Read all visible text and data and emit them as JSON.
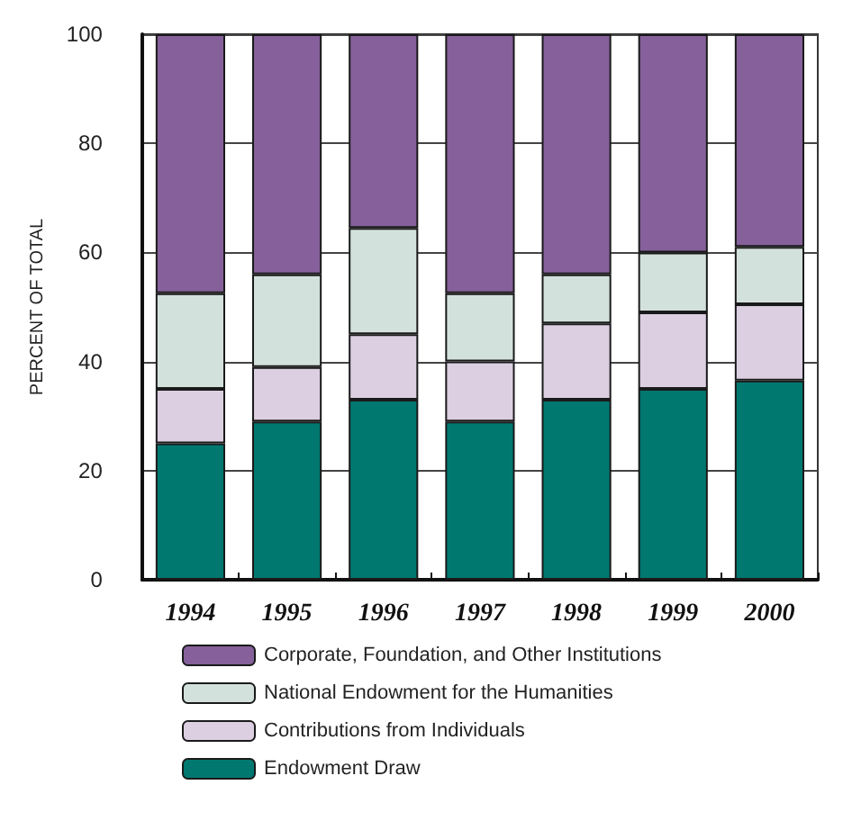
{
  "chart_data": {
    "type": "bar",
    "stacked": true,
    "ylabel": "PERCENT OF TOTAL",
    "categories": [
      "1994",
      "1995",
      "1996",
      "1997",
      "1998",
      "1999",
      "2000"
    ],
    "series": [
      {
        "name": "Endowment Draw",
        "color": "#007870",
        "values": [
          25,
          29,
          33,
          29,
          33,
          35,
          36.5
        ]
      },
      {
        "name": "Contributions from Individuals",
        "color": "#dccfe2",
        "values": [
          10,
          10,
          12,
          11,
          14,
          14,
          14
        ]
      },
      {
        "name": "National Endowment for the Humanities",
        "color": "#d3e1dd",
        "values": [
          17.5,
          17,
          19.5,
          12.5,
          9,
          11,
          10.5
        ]
      },
      {
        "name": "Corporate, Foundation, and Other Institutions",
        "color": "#85609a",
        "values": [
          47.5,
          44,
          35.5,
          47.5,
          44,
          40,
          39
        ]
      }
    ],
    "ylim": [
      0,
      100
    ],
    "yticks": [
      0,
      20,
      40,
      60,
      80,
      100
    ],
    "grid": "y",
    "legend": "bottom"
  }
}
